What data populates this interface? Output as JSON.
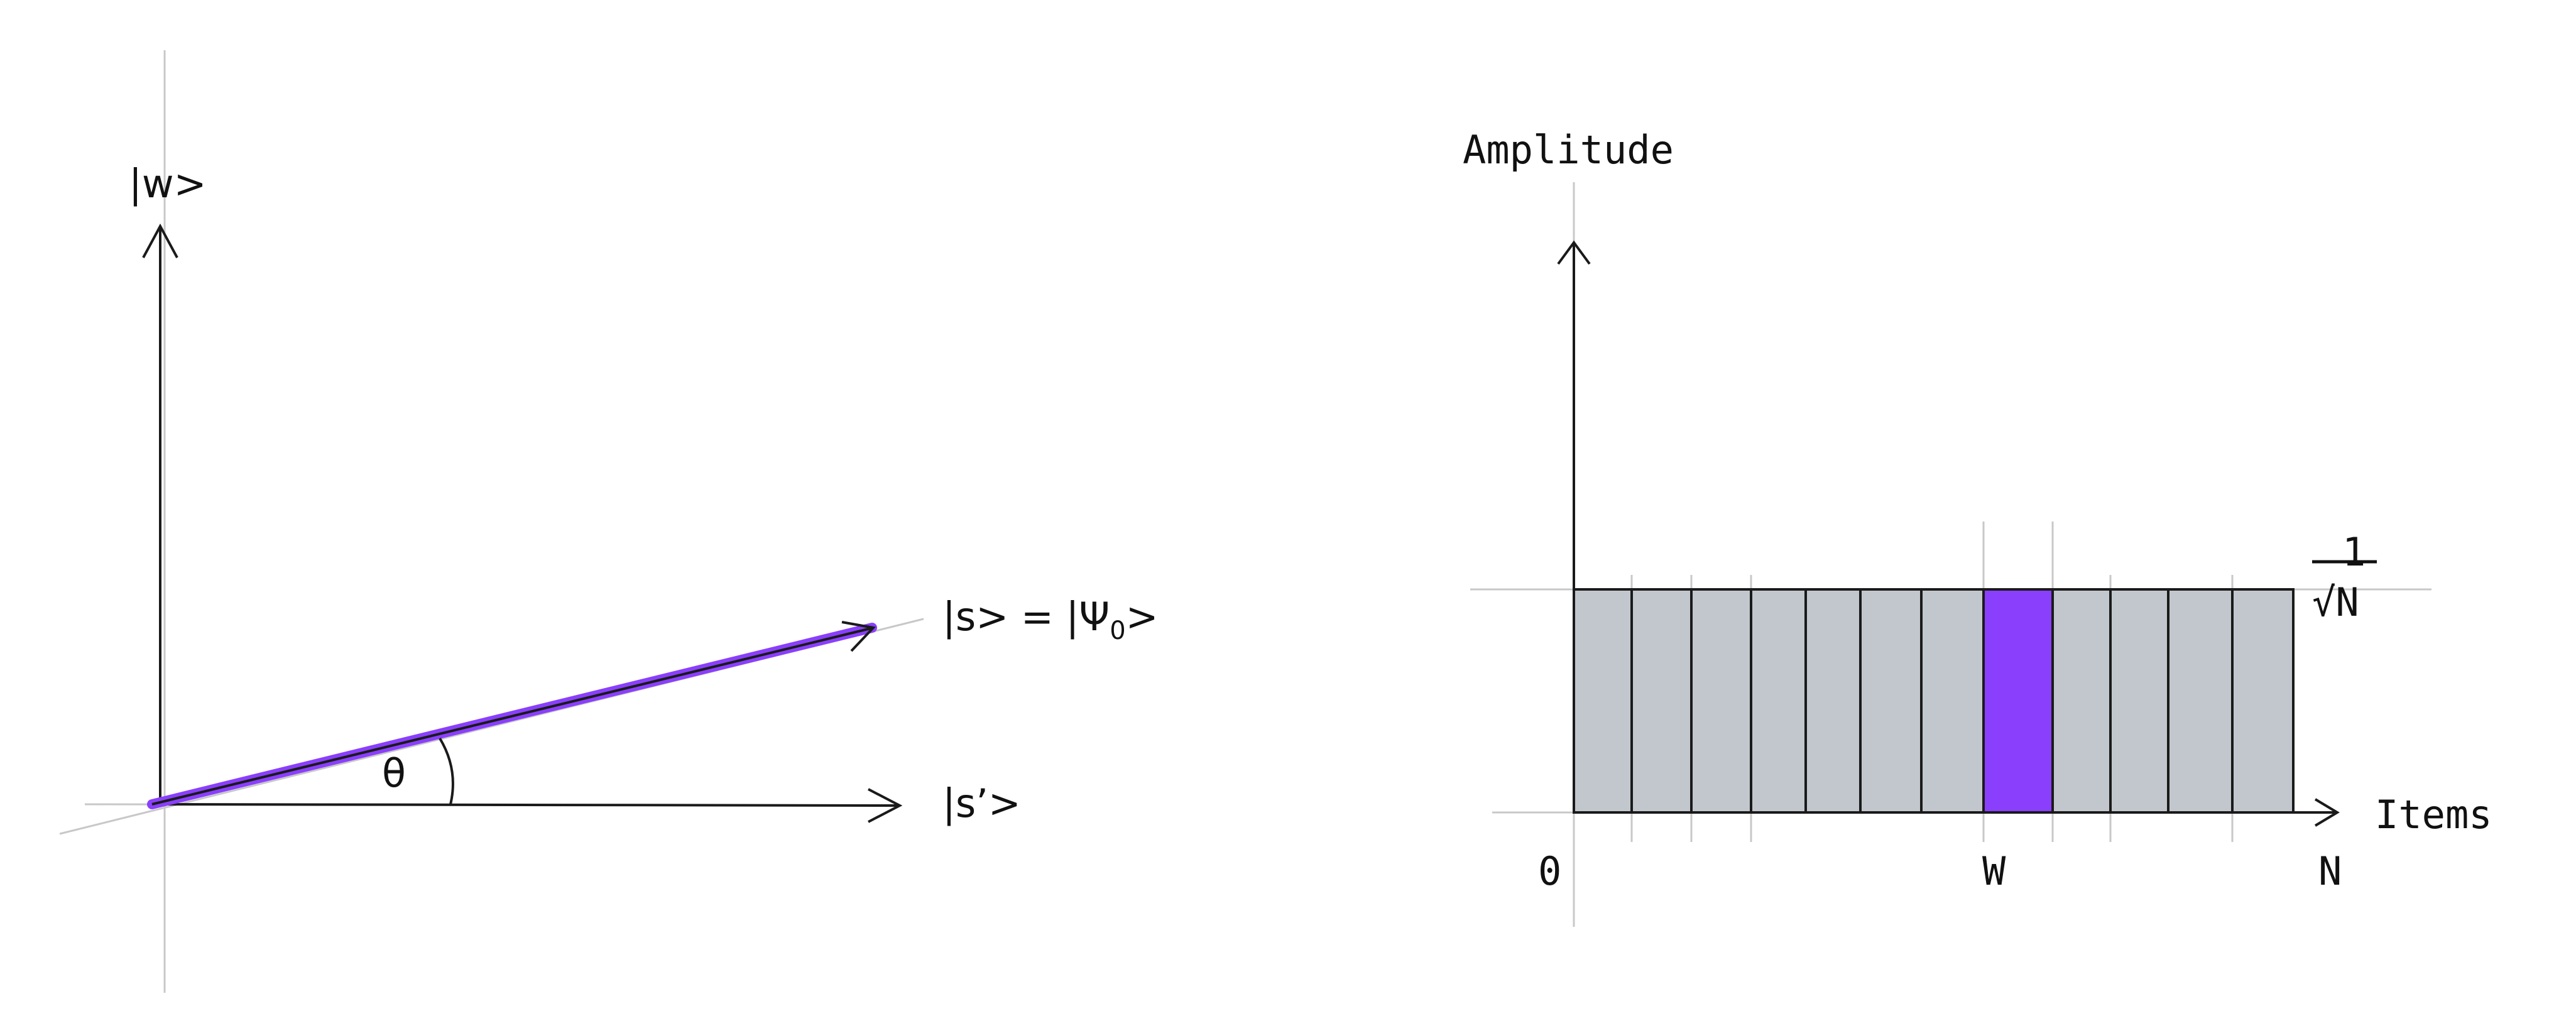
{
  "left_diagram": {
    "w_label": "|w>",
    "s_label": "|s> = |Ψ",
    "psi_subscript": "0",
    "s_label_end": ">",
    "s_prime_label": "|s’>",
    "theta_label": "θ",
    "vector_color": "#8a3ffc"
  },
  "right_diagram": {
    "y_axis_label": "Amplitude",
    "x_axis_label": "Items",
    "x_tick_start": "0",
    "x_tick_marked": "W",
    "x_tick_end": "N",
    "amplitude_numerator": "1",
    "amplitude_denominator": "√N",
    "item_count_shown": 12,
    "marked_item_index": 7,
    "bar_color": "#c1c7cd",
    "marked_color": "#8a3ffc"
  }
}
